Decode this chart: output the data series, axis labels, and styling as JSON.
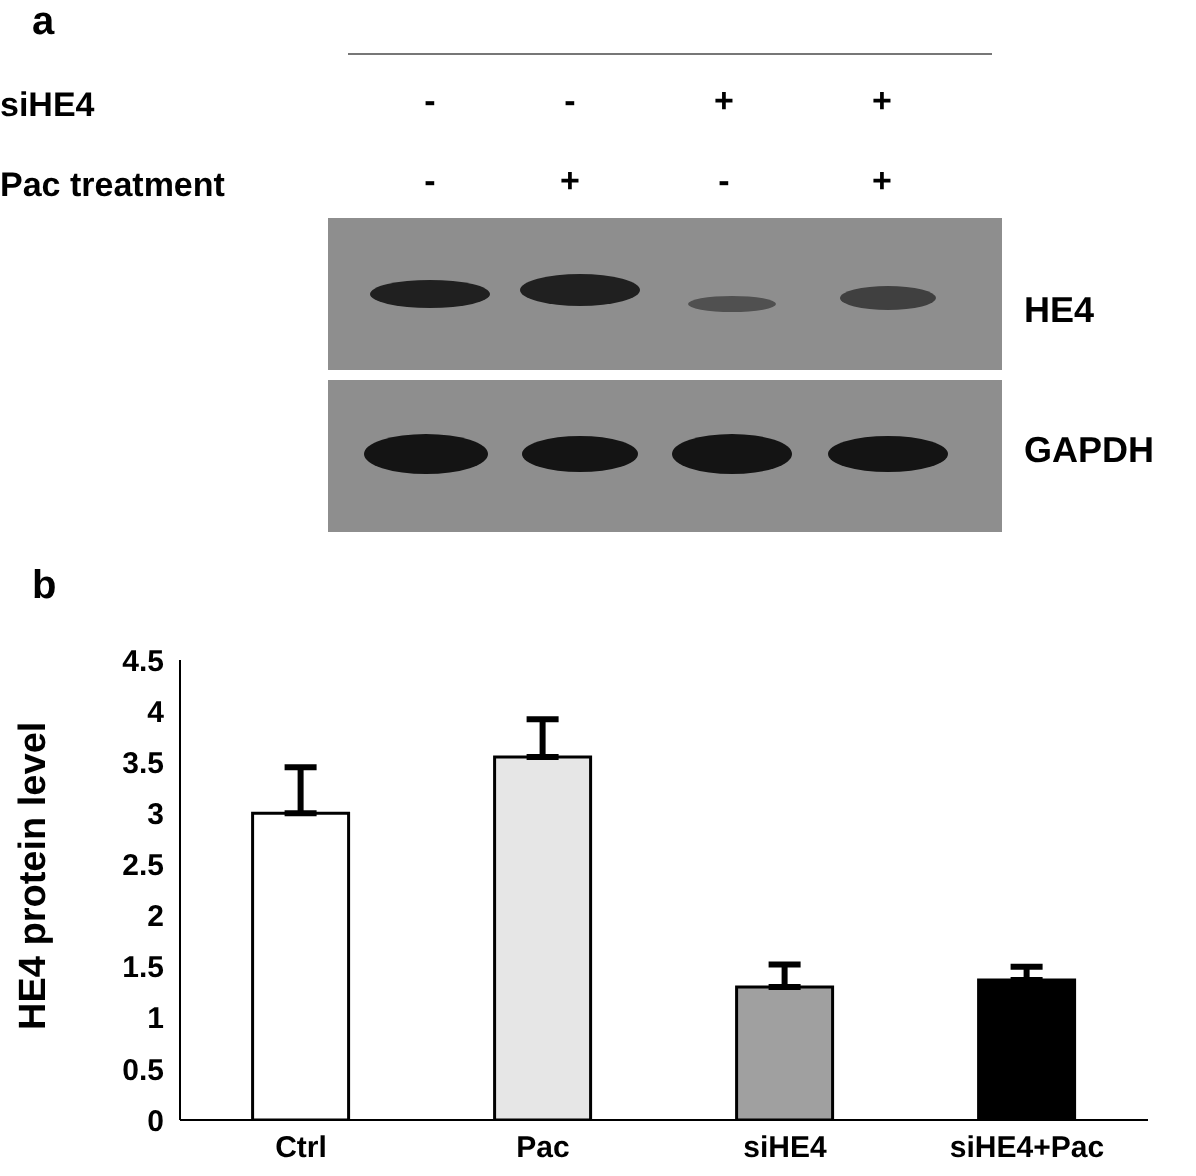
{
  "chart_data": [
    {
      "type": "other",
      "title": "a",
      "annotations": [
        "siHE4",
        "-",
        "-",
        "+",
        "+",
        "Pac treatment",
        "-",
        "+",
        "-",
        "+",
        "HE4",
        "GAPDH"
      ]
    },
    {
      "type": "bar",
      "title": "b",
      "ylabel": "HE4 protein level",
      "categories": [
        "Ctrl",
        "Pac",
        "siHE4",
        "siHE4+Pac"
      ],
      "values": [
        3.0,
        3.55,
        1.3,
        1.37
      ],
      "colors": [
        "#ffffff",
        "#e6e6e6",
        "#a0a0a0",
        "#000000"
      ],
      "errors": [
        [
          3.0,
          3.45
        ],
        [
          3.55,
          3.92
        ],
        [
          1.3,
          1.52
        ],
        [
          1.37,
          1.5
        ]
      ],
      "ylim": [
        0,
        4.5
      ],
      "yticks": [
        0,
        0.5,
        1,
        1.5,
        2,
        2.5,
        3,
        3.5,
        4,
        4.5
      ]
    }
  ]
}
